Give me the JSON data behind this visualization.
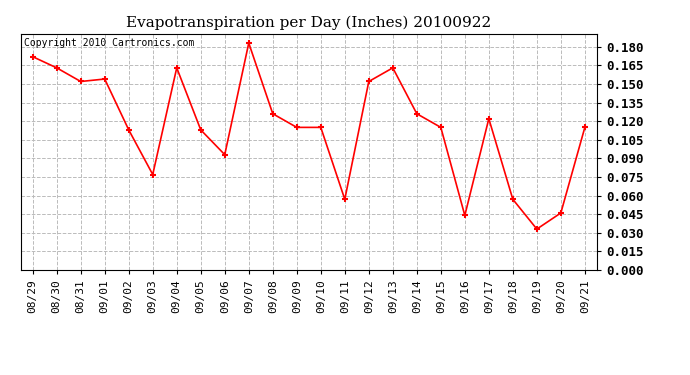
{
  "title": "Evapotranspiration per Day (Inches) 20100922",
  "copyright_text": "Copyright 2010 Cartronics.com",
  "labels": [
    "08/29",
    "08/30",
    "08/31",
    "09/01",
    "09/02",
    "09/03",
    "09/04",
    "09/05",
    "09/06",
    "09/07",
    "09/08",
    "09/09",
    "09/10",
    "09/11",
    "09/12",
    "09/13",
    "09/14",
    "09/15",
    "09/16",
    "09/17",
    "09/18",
    "09/19",
    "09/20",
    "09/21"
  ],
  "values": [
    0.172,
    0.163,
    0.152,
    0.154,
    0.113,
    0.077,
    0.163,
    0.113,
    0.093,
    0.183,
    0.126,
    0.115,
    0.115,
    0.057,
    0.152,
    0.163,
    0.126,
    0.115,
    0.044,
    0.122,
    0.057,
    0.033,
    0.046,
    0.115
  ],
  "line_color": "red",
  "marker": "+",
  "marker_size": 5,
  "marker_linewidth": 1.5,
  "linewidth": 1.2,
  "ylim": [
    0.0,
    0.1905
  ],
  "yticks": [
    0.0,
    0.015,
    0.03,
    0.045,
    0.06,
    0.075,
    0.09,
    0.105,
    0.12,
    0.135,
    0.15,
    0.165,
    0.18
  ],
  "grid_color": "#bbbbbb",
  "grid_style": "--",
  "background_color": "#ffffff",
  "title_fontsize": 11,
  "copyright_fontsize": 7,
  "tick_fontsize": 8,
  "ytick_fontsize": 9,
  "fig_width": 6.9,
  "fig_height": 3.75,
  "dpi": 100
}
